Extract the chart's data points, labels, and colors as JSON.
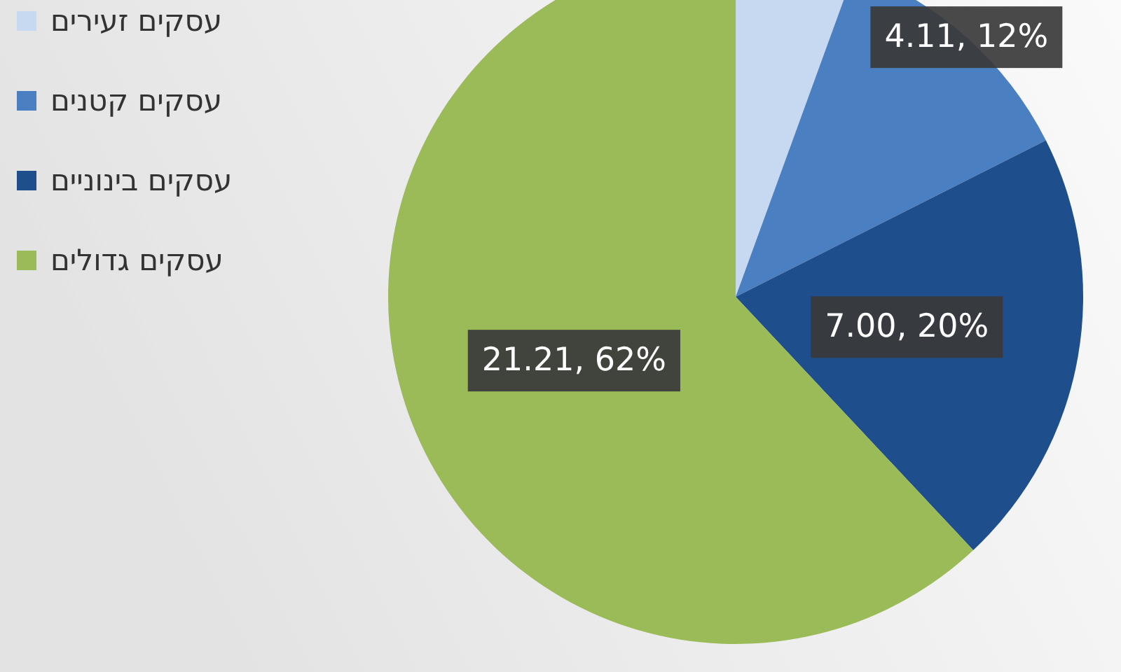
{
  "chart_data": {
    "type": "pie",
    "categories": [
      "עסקים זעירים",
      "עסקים קטנים",
      "עסקים בינוניים",
      "עסקים גדולים"
    ],
    "values": [
      1.9,
      4.11,
      7.0,
      21.21
    ],
    "colors": [
      "#c6d9f1",
      "#4a7fc1",
      "#1f4e8c",
      "#9bbb59"
    ],
    "value_labels": [
      null,
      "4.11, 12%",
      "7.00, 20%",
      "21.21, 62%"
    ],
    "legend": "top left"
  }
}
